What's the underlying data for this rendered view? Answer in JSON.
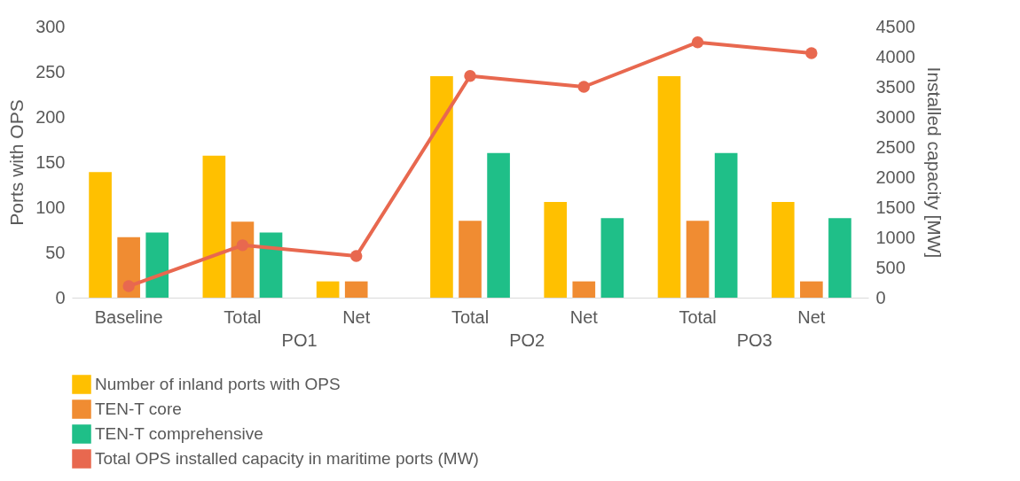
{
  "chart_data": {
    "type": "bar",
    "ylabel": "Ports with OPS",
    "y2label": "Installed capacity [MW]",
    "categories": [
      "Baseline",
      "Total",
      "Net",
      "Total",
      "Net",
      "Total",
      "Net"
    ],
    "series": [
      {
        "name": "Number of inland ports with OPS",
        "color": "#ffc000",
        "values": [
          139,
          157,
          18,
          245,
          106,
          245,
          106
        ]
      },
      {
        "name": "TEN-T core",
        "color": "#f08c32",
        "values": [
          67,
          84,
          18,
          85,
          18,
          85,
          18
        ]
      },
      {
        "name": "TEN-T comprehensive",
        "color": "#1fbf88",
        "values": [
          72,
          72,
          null,
          160,
          88,
          160,
          88
        ]
      },
      {
        "name": "Total OPS installed capacity in maritime ports (MW)",
        "type": "line",
        "axis": "y2",
        "color": "#e8684f",
        "marker": "circle",
        "values": [
          190,
          870,
          690,
          3680,
          3500,
          4240,
          4060
        ]
      }
    ],
    "ylim": [
      0,
      300
    ],
    "yticks": [
      0,
      50,
      100,
      150,
      200,
      250,
      300
    ],
    "y2lim": [
      0,
      4500
    ],
    "y2ticks": [
      0,
      500,
      1000,
      1500,
      2000,
      2500,
      3000,
      3500,
      4000,
      4500
    ],
    "annotations": [
      "PO1",
      "PO2",
      "PO3"
    ],
    "grid": false,
    "legend": "bottom"
  }
}
